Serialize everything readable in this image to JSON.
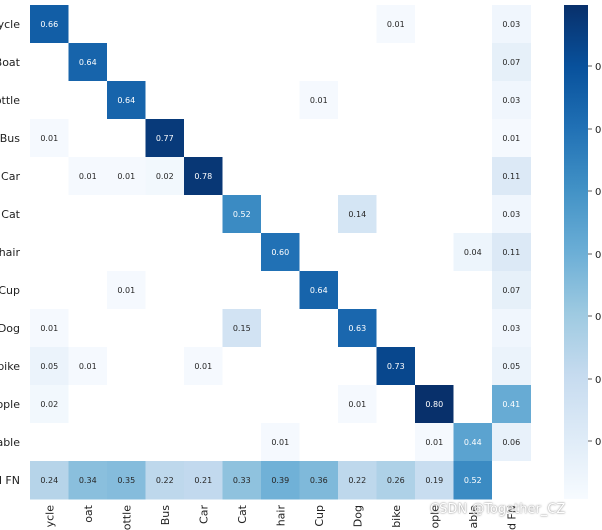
{
  "chart_data": {
    "type": "heatmap",
    "title": "",
    "xlabel": "",
    "ylabel": "",
    "row_labels": [
      "ycle",
      "Boat",
      "ottle",
      "Bus",
      "Car",
      "Cat",
      "hair",
      "Cup",
      "Dog",
      "bike",
      "ople",
      "able",
      "d FN"
    ],
    "col_labels": [
      "ycle",
      "oat",
      "ottle",
      "Bus",
      "Car",
      "Cat",
      "hair",
      "Cup",
      "Dog",
      "bike",
      "ople",
      "able",
      "d FN"
    ],
    "values": [
      [
        0.66,
        null,
        null,
        null,
        null,
        null,
        null,
        null,
        null,
        0.01,
        null,
        null,
        0.03
      ],
      [
        null,
        0.64,
        null,
        null,
        null,
        null,
        null,
        null,
        null,
        null,
        null,
        null,
        0.07
      ],
      [
        null,
        null,
        0.64,
        null,
        null,
        null,
        null,
        0.01,
        null,
        null,
        null,
        null,
        0.03
      ],
      [
        0.01,
        null,
        null,
        0.77,
        null,
        null,
        null,
        null,
        null,
        null,
        null,
        null,
        0.01
      ],
      [
        null,
        0.01,
        0.01,
        0.02,
        0.78,
        null,
        null,
        null,
        null,
        null,
        null,
        null,
        0.11
      ],
      [
        null,
        null,
        null,
        null,
        null,
        0.52,
        null,
        null,
        0.14,
        null,
        null,
        null,
        0.03
      ],
      [
        null,
        null,
        null,
        null,
        null,
        null,
        0.6,
        null,
        null,
        null,
        null,
        0.04,
        0.11
      ],
      [
        null,
        null,
        0.01,
        null,
        null,
        null,
        null,
        0.64,
        null,
        null,
        null,
        null,
        0.07
      ],
      [
        0.01,
        null,
        null,
        null,
        null,
        0.15,
        null,
        null,
        0.63,
        null,
        null,
        null,
        0.03
      ],
      [
        0.05,
        0.01,
        null,
        null,
        0.01,
        null,
        null,
        null,
        null,
        0.73,
        null,
        null,
        0.05
      ],
      [
        0.02,
        null,
        null,
        null,
        null,
        null,
        null,
        null,
        0.01,
        null,
        0.8,
        null,
        0.41
      ],
      [
        null,
        null,
        null,
        null,
        null,
        null,
        0.01,
        null,
        null,
        null,
        0.01,
        0.44,
        0.06
      ],
      [
        0.24,
        0.34,
        0.35,
        0.22,
        0.21,
        0.33,
        0.39,
        0.36,
        0.22,
        0.26,
        0.19,
        0.52,
        null
      ]
    ],
    "vmin": 0,
    "vmax": 0.8,
    "colormap": "Blues",
    "colorbar": {
      "position": "right",
      "tick_labels": [
        "0",
        "0",
        "0",
        "0",
        "0",
        "0",
        "0"
      ]
    },
    "grid": false,
    "legend": "none"
  },
  "watermark": {
    "text": "CSDN @Together_CZ"
  }
}
